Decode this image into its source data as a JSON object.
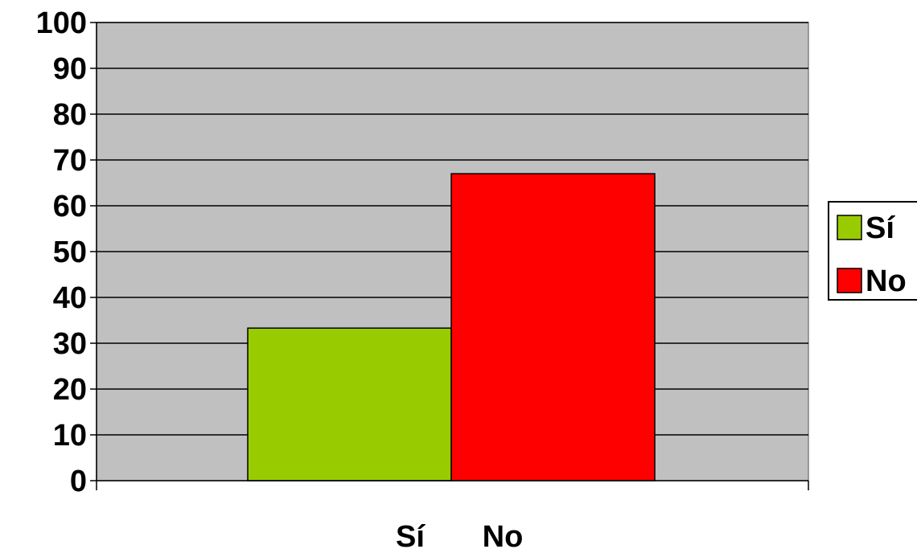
{
  "chart_data": {
    "type": "bar",
    "categories": [
      "Sí",
      "No"
    ],
    "series": [
      {
        "name": "Sí",
        "values": [
          33.3,
          null
        ],
        "color": "#99cc00"
      },
      {
        "name": "No",
        "values": [
          null,
          67
        ],
        "color": "#ff0000"
      }
    ],
    "ylim": [
      0,
      100
    ],
    "yticks": [
      0,
      10,
      20,
      30,
      40,
      50,
      60,
      70,
      80,
      90,
      100
    ],
    "plot_background": "#c0c0c0",
    "grid": true,
    "legend": {
      "position": "right",
      "entries": [
        "Sí",
        "No"
      ]
    },
    "title": "",
    "xlabel": "",
    "ylabel": ""
  }
}
